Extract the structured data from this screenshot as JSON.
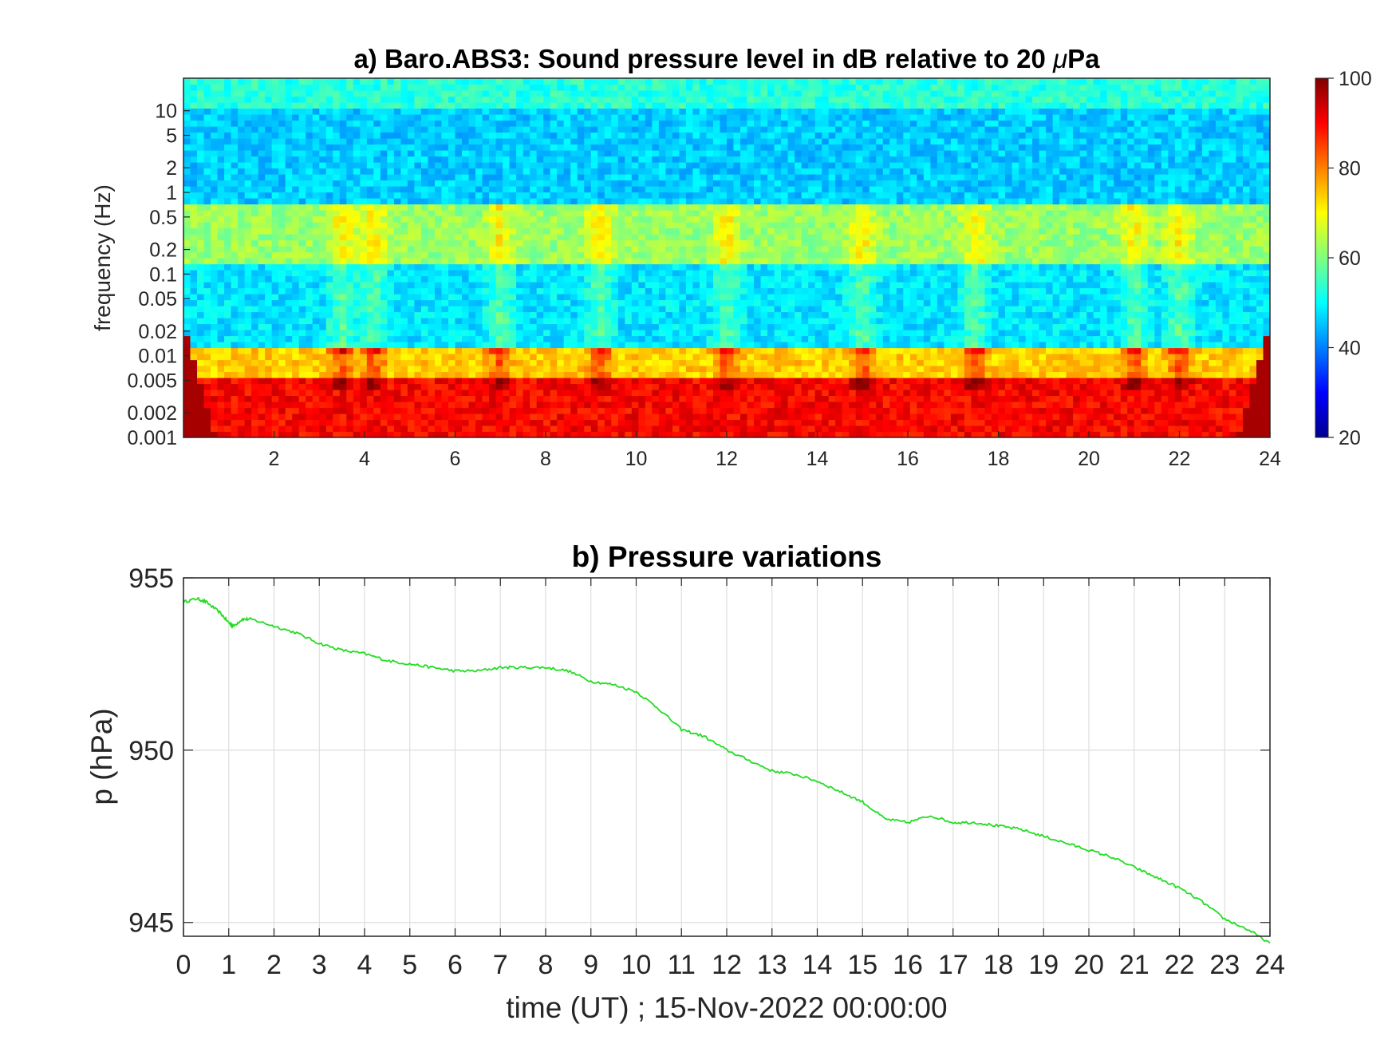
{
  "chart_data": [
    {
      "type": "heatmap",
      "title_prefix": "a) Baro.ABS3: Sound pressure level in dB relative to 20 ",
      "title_mu": "μ",
      "title_suffix": "Pa",
      "xlabel": "",
      "ylabel": "frequency (Hz)",
      "xlim": [
        0,
        24
      ],
      "x_ticks": [
        2,
        4,
        6,
        8,
        10,
        12,
        14,
        16,
        18,
        20,
        22,
        24
      ],
      "x_tick_labels": [
        "2",
        "4",
        "6",
        "8",
        "10",
        "12",
        "14",
        "16",
        "18",
        "20",
        "22",
        "24"
      ],
      "y_scale": "log",
      "ylim": [
        0.001,
        25
      ],
      "y_ticks": [
        10,
        5,
        2,
        1,
        0.5,
        0.2,
        0.1,
        0.05,
        0.02,
        0.01,
        0.005,
        0.002,
        0.001
      ],
      "y_tick_labels": [
        "10",
        "5",
        "2",
        "1",
        "0.5",
        "0.2",
        "0.1",
        "0.05",
        "0.02",
        "0.01",
        "0.005",
        "0.002",
        "0.001"
      ],
      "colormap": "jet",
      "clim": [
        20,
        100
      ],
      "colorbar_ticks": [
        100,
        80,
        60,
        40,
        20
      ],
      "colorbar_tick_labels": [
        "100",
        "80",
        "60",
        "40",
        "20"
      ],
      "colorbar_position": "right",
      "bands": [
        {
          "f_range": [
            10,
            25
          ],
          "level_db": 53
        },
        {
          "f_range": [
            0.7,
            10
          ],
          "level_db": 46
        },
        {
          "f_range": [
            0.13,
            0.7
          ],
          "level_db": 62
        },
        {
          "f_range": [
            0.012,
            0.13
          ],
          "level_db": 48
        },
        {
          "f_range": [
            0.005,
            0.012
          ],
          "level_db": 74
        },
        {
          "f_range": [
            0.001,
            0.005
          ],
          "level_db": 90
        }
      ],
      "activity_peaks_hours": [
        3.5,
        4.2,
        7,
        9.2,
        12,
        15,
        17.5,
        21,
        22
      ]
    },
    {
      "type": "line",
      "title": "b) Pressure variations",
      "xlabel": "time (UT) ; 15-Nov-2022 00:00:00",
      "ylabel": "p (hPa)",
      "xlim": [
        0,
        24
      ],
      "ylim": [
        944.6,
        955
      ],
      "x_ticks": [
        0,
        1,
        2,
        3,
        4,
        5,
        6,
        7,
        8,
        9,
        10,
        11,
        12,
        13,
        14,
        15,
        16,
        17,
        18,
        19,
        20,
        21,
        22,
        23,
        24
      ],
      "x_tick_labels": [
        "0",
        "1",
        "2",
        "3",
        "4",
        "5",
        "6",
        "7",
        "8",
        "9",
        "10",
        "11",
        "12",
        "13",
        "14",
        "15",
        "16",
        "17",
        "18",
        "19",
        "20",
        "21",
        "22",
        "23",
        "24"
      ],
      "y_ticks": [
        955,
        950,
        945
      ],
      "y_tick_labels": [
        "955",
        "950",
        "945"
      ],
      "grid": true,
      "line_color": "#22dd22",
      "series": [
        {
          "x": [
            0,
            0.3,
            0.5,
            0.8,
            1.0,
            1.1,
            1.3,
            1.5,
            2,
            2.5,
            3,
            3.5,
            4,
            4.5,
            5,
            5.5,
            6,
            6.5,
            7,
            7.5,
            8,
            8.5,
            9,
            9.5,
            10,
            10.5,
            11,
            11.5,
            12,
            12.5,
            13,
            13.5,
            14,
            14.5,
            15,
            15.5,
            16,
            16.5,
            17,
            17.5,
            18,
            18.5,
            19,
            19.5,
            20,
            20.5,
            21,
            21.5,
            22,
            22.5,
            23,
            23.5,
            24
          ],
          "y": [
            954.3,
            954.4,
            954.3,
            954.0,
            953.7,
            953.6,
            953.8,
            953.8,
            953.6,
            953.4,
            953.1,
            952.9,
            952.8,
            952.6,
            952.5,
            952.4,
            952.3,
            952.3,
            952.4,
            952.4,
            952.4,
            952.3,
            952.0,
            951.9,
            951.7,
            951.2,
            950.6,
            950.4,
            950.0,
            949.7,
            949.4,
            949.3,
            949.1,
            948.8,
            948.5,
            948.0,
            947.9,
            948.1,
            947.9,
            947.9,
            947.8,
            947.7,
            947.5,
            947.3,
            947.1,
            946.9,
            946.6,
            946.3,
            946.0,
            945.6,
            945.1,
            944.8,
            944.4
          ]
        }
      ]
    }
  ]
}
